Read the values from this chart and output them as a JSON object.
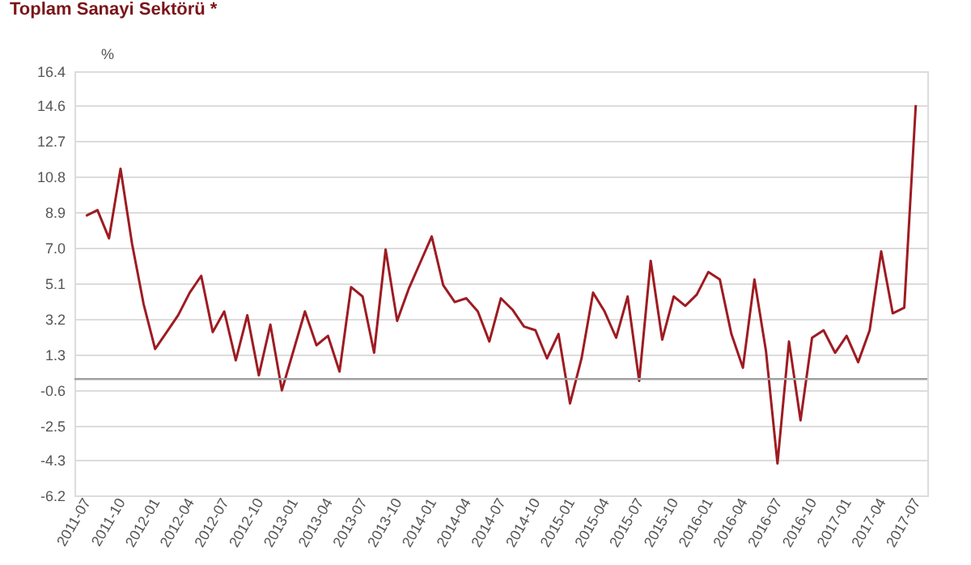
{
  "chart_data": {
    "type": "line",
    "title": "Toplam Sanayi Sektörü *",
    "ylabel": "%",
    "categories": [
      "2011-07",
      null,
      null,
      "2011-10",
      null,
      null,
      "2012-01",
      null,
      null,
      "2012-04",
      null,
      null,
      "2012-07",
      null,
      null,
      "2012-10",
      null,
      null,
      "2013-01",
      null,
      null,
      "2013-04",
      null,
      null,
      "2013-07",
      null,
      null,
      "2013-10",
      null,
      null,
      "2014-01",
      null,
      null,
      "2014-04",
      null,
      null,
      "2014-07",
      null,
      null,
      "2014-10",
      null,
      null,
      "2015-01",
      null,
      null,
      "2015-04",
      null,
      null,
      "2015-07",
      null,
      null,
      "2015-10",
      null,
      null,
      "2016-01",
      null,
      null,
      "2016-04",
      null,
      null,
      "2016-07",
      null,
      null,
      "2016-10",
      null,
      null,
      "2017-01",
      null,
      null,
      "2017-04",
      null,
      null,
      "2017-07"
    ],
    "series": [
      {
        "color": "#9e1b22",
        "values": [
          8.7,
          9.0,
          7.5,
          11.2,
          7.2,
          4.0,
          1.6,
          2.5,
          3.4,
          4.6,
          5.5,
          2.5,
          3.6,
          1.0,
          3.4,
          0.2,
          2.9,
          -0.6,
          1.5,
          3.6,
          1.8,
          2.3,
          0.4,
          4.9,
          4.4,
          1.4,
          6.9,
          3.1,
          4.8,
          6.2,
          7.6,
          5.0,
          4.1,
          4.3,
          3.6,
          2.0,
          4.3,
          3.7,
          2.8,
          2.6,
          1.1,
          2.4,
          -1.3,
          1.1,
          4.6,
          3.6,
          2.2,
          4.4,
          -0.1,
          6.3,
          2.1,
          4.4,
          3.9,
          4.5,
          5.7,
          5.3,
          2.4,
          0.6,
          5.3,
          1.5,
          -4.5,
          2.0,
          -2.2,
          2.2,
          2.6,
          1.4,
          2.3,
          0.9,
          2.6,
          6.8,
          3.5,
          3.8,
          14.6
        ]
      }
    ],
    "ylim": [
      -6.2,
      16.4
    ],
    "yticks": [
      -6.2,
      -4.3,
      -2.5,
      -0.6,
      1.3,
      3.2,
      5.1,
      {
        "value": 7,
        "label": "7.0"
      },
      8.9,
      10.8,
      12.7,
      14.6,
      16.4
    ],
    "grid": "y",
    "marker": "none",
    "line_style": "solid",
    "ref_lines": [
      {
        "axis": "y",
        "value": 0,
        "color": "#a0a0a0"
      }
    ]
  }
}
